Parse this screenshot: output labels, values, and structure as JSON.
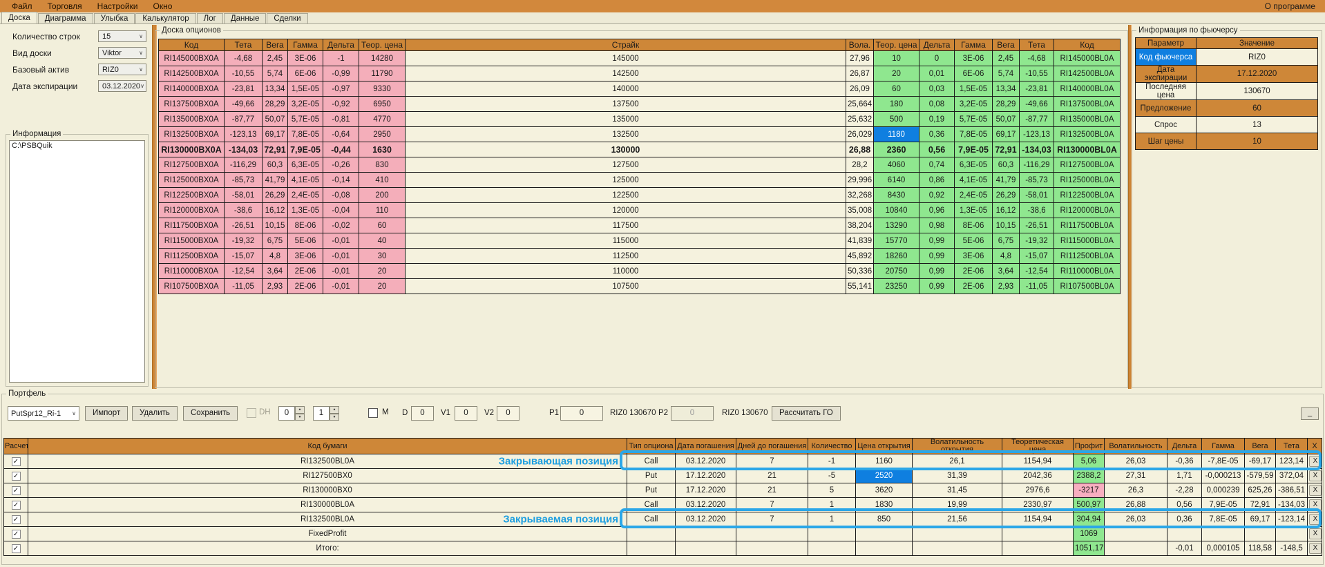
{
  "ui": {
    "dropdown_arrow": "∨",
    "spin_up": "▲",
    "spin_down": "▼",
    "check_glyph": "✓",
    "minimize_label": "_"
  },
  "menu": {
    "items": [
      "Файл",
      "Торговля",
      "Настройки",
      "Окно"
    ],
    "right_item": "О программе"
  },
  "tabs": {
    "items": [
      "Доска",
      "Диаграмма",
      "Улыбка",
      "Калькулятор",
      "Лог",
      "Данные",
      "Сделки"
    ],
    "active": "Доска"
  },
  "sidebar": {
    "fields": [
      {
        "label": "Количество строк",
        "value": "15"
      },
      {
        "label": "Вид доски",
        "value": "Viktor"
      },
      {
        "label": "Базовый актив",
        "value": "RIZ0"
      },
      {
        "label": "Дата экспирации",
        "value": "03.12.2020"
      }
    ],
    "info_group": {
      "title": "Информация",
      "items": [
        "C:\\PSBQuik"
      ]
    }
  },
  "board": {
    "title": "Доска опционов",
    "headers": [
      "Код",
      "Тета",
      "Вега",
      "Гамма",
      "Дельта",
      "Теор. цена",
      "Страйк",
      "Вола.",
      "Теор. цена",
      "Дельта",
      "Гамма",
      "Вега",
      "Тета",
      "Код"
    ],
    "bold_row": 6,
    "selected_cell": {
      "row": 5,
      "col": 8
    },
    "rows": [
      [
        "RI145000BX0A",
        "-4,68",
        "2,45",
        "3E-06",
        "-1",
        "14280",
        "145000",
        "27,96",
        "10",
        "0",
        "3E-06",
        "2,45",
        "-4,68",
        "RI145000BL0A"
      ],
      [
        "RI142500BX0A",
        "-10,55",
        "5,74",
        "6E-06",
        "-0,99",
        "11790",
        "142500",
        "26,87",
        "20",
        "0,01",
        "6E-06",
        "5,74",
        "-10,55",
        "RI142500BL0A"
      ],
      [
        "RI140000BX0A",
        "-23,81",
        "13,34",
        "1,5E-05",
        "-0,97",
        "9330",
        "140000",
        "26,09",
        "60",
        "0,03",
        "1,5E-05",
        "13,34",
        "-23,81",
        "RI140000BL0A"
      ],
      [
        "RI137500BX0A",
        "-49,66",
        "28,29",
        "3,2E-05",
        "-0,92",
        "6950",
        "137500",
        "25,664",
        "180",
        "0,08",
        "3,2E-05",
        "28,29",
        "-49,66",
        "RI137500BL0A"
      ],
      [
        "RI135000BX0A",
        "-87,77",
        "50,07",
        "5,7E-05",
        "-0,81",
        "4770",
        "135000",
        "25,632",
        "500",
        "0,19",
        "5,7E-05",
        "50,07",
        "-87,77",
        "RI135000BL0A"
      ],
      [
        "RI132500BX0A",
        "-123,13",
        "69,17",
        "7,8E-05",
        "-0,64",
        "2950",
        "132500",
        "26,029",
        "1180",
        "0,36",
        "7,8E-05",
        "69,17",
        "-123,13",
        "RI132500BL0A"
      ],
      [
        "RI130000BX0A",
        "-134,03",
        "72,91",
        "7,9E-05",
        "-0,44",
        "1630",
        "130000",
        "26,88",
        "2360",
        "0,56",
        "7,9E-05",
        "72,91",
        "-134,03",
        "RI130000BL0A"
      ],
      [
        "RI127500BX0A",
        "-116,29",
        "60,3",
        "6,3E-05",
        "-0,26",
        "830",
        "127500",
        "28,2",
        "4060",
        "0,74",
        "6,3E-05",
        "60,3",
        "-116,29",
        "RI127500BL0A"
      ],
      [
        "RI125000BX0A",
        "-85,73",
        "41,79",
        "4,1E-05",
        "-0,14",
        "410",
        "125000",
        "29,996",
        "6140",
        "0,86",
        "4,1E-05",
        "41,79",
        "-85,73",
        "RI125000BL0A"
      ],
      [
        "RI122500BX0A",
        "-58,01",
        "26,29",
        "2,4E-05",
        "-0,08",
        "200",
        "122500",
        "32,268",
        "8430",
        "0,92",
        "2,4E-05",
        "26,29",
        "-58,01",
        "RI122500BL0A"
      ],
      [
        "RI120000BX0A",
        "-38,6",
        "16,12",
        "1,3E-05",
        "-0,04",
        "110",
        "120000",
        "35,008",
        "10840",
        "0,96",
        "1,3E-05",
        "16,12",
        "-38,6",
        "RI120000BL0A"
      ],
      [
        "RI117500BX0A",
        "-26,51",
        "10,15",
        "8E-06",
        "-0,02",
        "60",
        "117500",
        "38,204",
        "13290",
        "0,98",
        "8E-06",
        "10,15",
        "-26,51",
        "RI117500BL0A"
      ],
      [
        "RI115000BX0A",
        "-19,32",
        "6,75",
        "5E-06",
        "-0,01",
        "40",
        "115000",
        "41,839",
        "15770",
        "0,99",
        "5E-06",
        "6,75",
        "-19,32",
        "RI115000BL0A"
      ],
      [
        "RI112500BX0A",
        "-15,07",
        "4,8",
        "3E-06",
        "-0,01",
        "30",
        "112500",
        "45,892",
        "18260",
        "0,99",
        "3E-06",
        "4,8",
        "-15,07",
        "RI112500BL0A"
      ],
      [
        "RI110000BX0A",
        "-12,54",
        "3,64",
        "2E-06",
        "-0,01",
        "20",
        "110000",
        "50,336",
        "20750",
        "0,99",
        "2E-06",
        "3,64",
        "-12,54",
        "RI110000BL0A"
      ],
      [
        "RI107500BX0A",
        "-11,05",
        "2,93",
        "2E-06",
        "-0,01",
        "20",
        "107500",
        "55,141",
        "23250",
        "0,99",
        "2E-06",
        "2,93",
        "-11,05",
        "RI107500BL0A"
      ]
    ]
  },
  "futures_info": {
    "title": "Информация по фьючерсу",
    "headers": [
      "Параметр",
      "Значение"
    ],
    "rows": [
      {
        "param": "Код фьючерса",
        "value": "RIZ0",
        "orange": false,
        "selected": true
      },
      {
        "param": "Дата экспирации",
        "value": "17.12.2020",
        "orange": true,
        "selected": false
      },
      {
        "param": "Последняя цена",
        "value": "130670",
        "orange": false,
        "selected": false
      },
      {
        "param": "Предложение",
        "value": "60",
        "orange": true,
        "selected": false
      },
      {
        "param": "Спрос",
        "value": "13",
        "orange": false,
        "selected": false
      },
      {
        "param": "Шаг цены",
        "value": "10",
        "orange": true,
        "selected": false
      }
    ]
  },
  "portfolio": {
    "title": "Портфель",
    "toolbar": {
      "preset_value": "PutSpr12_Ri-1",
      "import_label": "Импорт",
      "delete_label": "Удалить",
      "save_label": "Сохранить",
      "dh_label": "DH",
      "spin1_value": "0",
      "spin2_value": "1",
      "m_label": "M",
      "d_label": "D",
      "d_value": "0",
      "v1_label": "V1",
      "v1_value": "0",
      "v2_label": "V2",
      "v2_value": "0",
      "p1_label": "P1",
      "p1_value": "0",
      "p1_info": "RIZ0 130670",
      "p2_label": "P2",
      "p2_value": "0",
      "p2_info": "RIZ0 130670",
      "calc_label": "Рассчитать ГО"
    },
    "headers": [
      "Расчет",
      "Код бумаги",
      "Тип опциона",
      "Дата погашения",
      "Дней до погашения",
      "Количество",
      "Цена открытия",
      "Волатильность открытия",
      "Теоретическая цена",
      "Профит",
      "Волатильность",
      "Дельта",
      "Гамма",
      "Вега",
      "Тета",
      "X"
    ],
    "row_close_label": "X",
    "rows": [
      {
        "checked": true,
        "code": "RI132500BL0A",
        "annotation": "Закрывающая позиция",
        "highlight_box": true,
        "type": "Call",
        "date": "03.12.2020",
        "days": "7",
        "qty": "-1",
        "open_price": "1160",
        "open_price_selected": false,
        "open_vol": "26,1",
        "theor_price": "1154,94",
        "profit": "5,06",
        "profit_color": "green",
        "volatility": "26,03",
        "delta": "-0,36",
        "gamma": "-7,8E-05",
        "vega": "-69,17",
        "theta": "123,14"
      },
      {
        "checked": true,
        "code": "RI127500BX0",
        "annotation": "",
        "highlight_box": false,
        "type": "Put",
        "date": "17.12.2020",
        "days": "21",
        "qty": "-5",
        "open_price": "2520",
        "open_price_selected": true,
        "open_vol": "31,39",
        "theor_price": "2042,36",
        "profit": "2388,2",
        "profit_color": "green",
        "volatility": "27,31",
        "delta": "1,71",
        "gamma": "-0,000213",
        "vega": "-579,59",
        "theta": "372,04"
      },
      {
        "checked": true,
        "code": "RI130000BX0",
        "annotation": "",
        "highlight_box": false,
        "type": "Put",
        "date": "17.12.2020",
        "days": "21",
        "qty": "5",
        "open_price": "3620",
        "open_price_selected": false,
        "open_vol": "31,45",
        "theor_price": "2976,6",
        "profit": "-3217",
        "profit_color": "pink",
        "volatility": "26,3",
        "delta": "-2,28",
        "gamma": "0,000239",
        "vega": "625,26",
        "theta": "-386,51"
      },
      {
        "checked": true,
        "code": "RI130000BL0A",
        "annotation": "",
        "highlight_box": false,
        "type": "Call",
        "date": "03.12.2020",
        "days": "7",
        "qty": "1",
        "open_price": "1830",
        "open_price_selected": false,
        "open_vol": "19,99",
        "theor_price": "2330,97",
        "profit": "500,97",
        "profit_color": "green",
        "volatility": "26,88",
        "delta": "0,56",
        "gamma": "7,9E-05",
        "vega": "72,91",
        "theta": "-134,03"
      },
      {
        "checked": true,
        "code": "RI132500BL0A",
        "annotation": "Закрываемая позиция",
        "highlight_box": true,
        "type": "Call",
        "date": "03.12.2020",
        "days": "7",
        "qty": "1",
        "open_price": "850",
        "open_price_selected": false,
        "open_vol": "21,56",
        "theor_price": "1154,94",
        "profit": "304,94",
        "profit_color": "green",
        "volatility": "26,03",
        "delta": "0,36",
        "gamma": "7,8E-05",
        "vega": "69,17",
        "theta": "-123,14"
      },
      {
        "checked": true,
        "code": "FixedProfit",
        "annotation": "",
        "highlight_box": false,
        "type": "",
        "date": "",
        "days": "",
        "qty": "",
        "open_price": "",
        "open_price_selected": false,
        "open_vol": "",
        "theor_price": "",
        "profit": "1069",
        "profit_color": "green",
        "volatility": "",
        "delta": "",
        "gamma": "",
        "vega": "",
        "theta": ""
      },
      {
        "checked": true,
        "code": "Итого:",
        "annotation": "",
        "highlight_box": false,
        "type": "",
        "date": "",
        "days": "",
        "qty": "",
        "open_price": "",
        "open_price_selected": false,
        "open_vol": "",
        "theor_price": "",
        "profit": "1051,17",
        "profit_color": "green",
        "volatility": "",
        "delta": "-0,01",
        "gamma": "0,000105",
        "vega": "118,58",
        "theta": "-148,5"
      }
    ]
  },
  "colors": {
    "menu_orange": "#D2883C",
    "header_orange": "#CE8738",
    "put_pink": "#F4AEBA",
    "call_green": "#8FE78F",
    "cream": "#F5F2DE",
    "selection_blue": "#0F7FE0",
    "annotation_blue": "#1E9FE0",
    "profit_green": "#8FE78F",
    "loss_pink": "#F8AEC0"
  }
}
